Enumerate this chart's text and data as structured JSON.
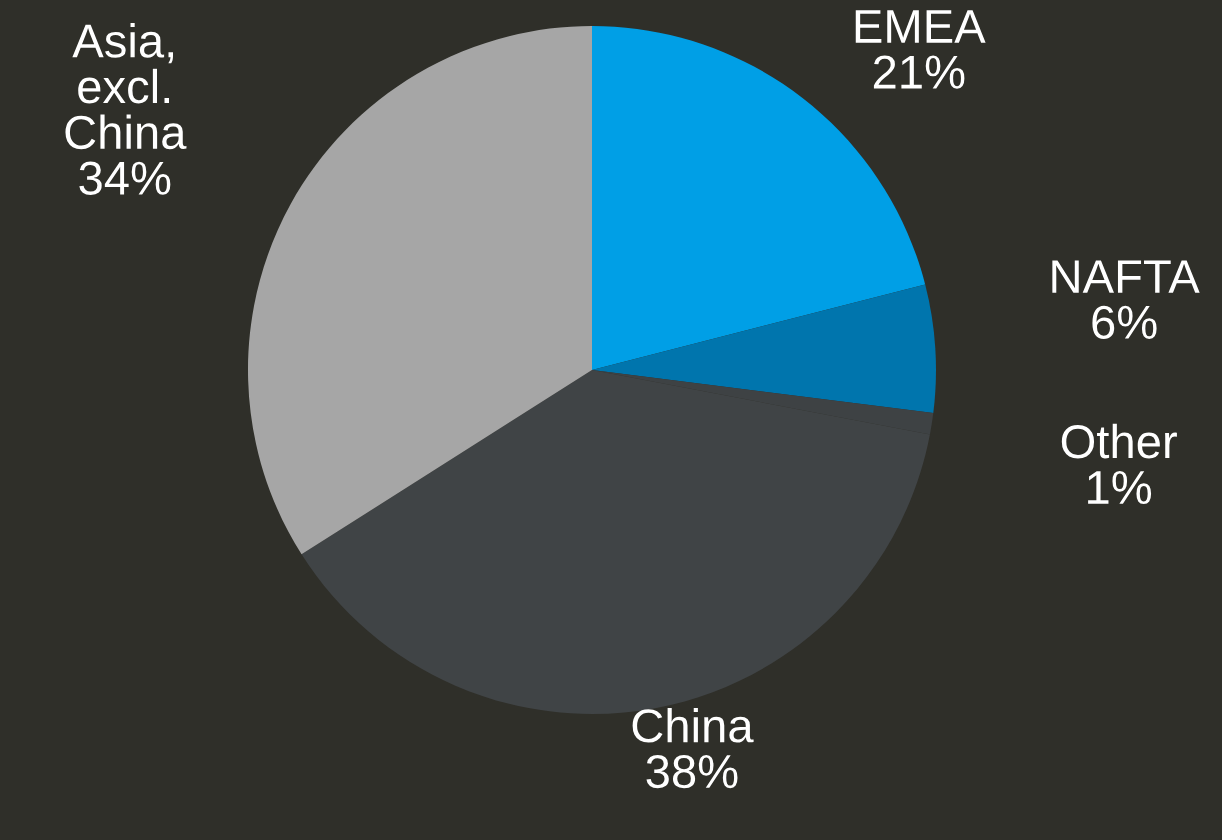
{
  "chart_data": {
    "type": "pie",
    "categories": [
      "EMEA",
      "NAFTA",
      "Other",
      "China",
      "Asia,\nexcl.\nChina"
    ],
    "values": [
      21,
      6,
      1,
      38,
      34
    ],
    "value_labels": [
      "21%",
      "6%",
      "1%",
      "38%",
      "34%"
    ],
    "colors": [
      "#009fe6",
      "#0075ad",
      "#3e4244",
      "#404446",
      "#a6a6a6"
    ],
    "legend": false
  }
}
